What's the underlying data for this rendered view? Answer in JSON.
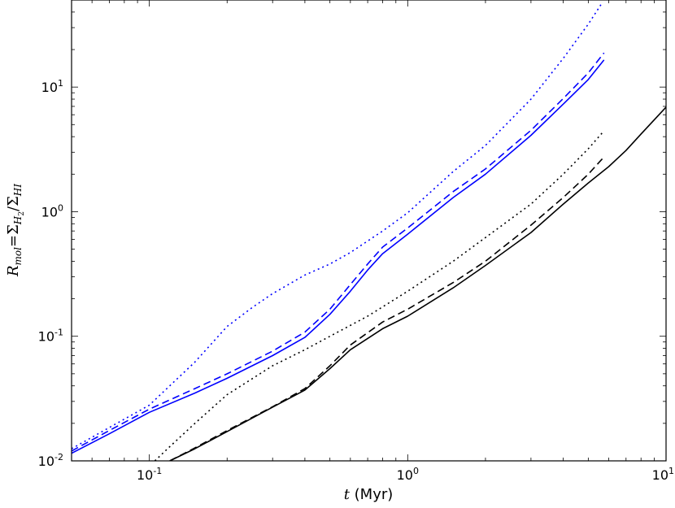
{
  "chart_data": {
    "type": "line",
    "xlabel_var": "t",
    "xlabel_unit": " (Myr)",
    "ylabel": "R_mol = Σ_H2 / Σ_HI",
    "xscale": "log",
    "yscale": "log",
    "xlim": [
      0.05,
      10
    ],
    "ylim": [
      0.01,
      50
    ],
    "grid": false,
    "x_tick_labels": [
      {
        "base": "10",
        "exp": "-1",
        "value": 0.1
      },
      {
        "base": "10",
        "exp": "0",
        "value": 1
      },
      {
        "base": "10",
        "exp": "1",
        "value": 10
      }
    ],
    "y_tick_labels": [
      {
        "base": "10",
        "exp": "-2",
        "value": 0.01
      },
      {
        "base": "10",
        "exp": "-1",
        "value": 0.1
      },
      {
        "base": "10",
        "exp": "0",
        "value": 1
      },
      {
        "base": "10",
        "exp": "1",
        "value": 10
      }
    ],
    "series": [
      {
        "color": "#0000ff",
        "dash": "solid",
        "x": [
          0.05,
          0.07,
          0.1,
          0.15,
          0.2,
          0.3,
          0.4,
          0.5,
          0.6,
          0.7,
          0.8,
          1.0,
          1.5,
          2.0,
          3.0,
          4.0,
          5.0,
          5.75
        ],
        "y": [
          0.0115,
          0.0165,
          0.0245,
          0.035,
          0.046,
          0.07,
          0.098,
          0.15,
          0.23,
          0.34,
          0.46,
          0.66,
          1.3,
          2.0,
          4.1,
          7.3,
          11.5,
          16.5
        ]
      },
      {
        "color": "#0000ff",
        "dash": "dashed",
        "x": [
          0.05,
          0.07,
          0.1,
          0.15,
          0.2,
          0.3,
          0.4,
          0.5,
          0.6,
          0.7,
          0.8,
          1.0,
          1.5,
          2.0,
          3.0,
          4.0,
          5.0,
          5.75
        ],
        "y": [
          0.012,
          0.0175,
          0.026,
          0.038,
          0.05,
          0.076,
          0.108,
          0.165,
          0.26,
          0.38,
          0.52,
          0.74,
          1.45,
          2.2,
          4.5,
          8.1,
          13.0,
          18.8
        ]
      },
      {
        "color": "#0000ff",
        "dash": "dotted",
        "x": [
          0.05,
          0.07,
          0.1,
          0.15,
          0.2,
          0.25,
          0.3,
          0.4,
          0.5,
          0.6,
          0.8,
          1.0,
          1.5,
          2.0,
          3.0,
          4.0,
          5.0,
          5.6
        ],
        "y": [
          0.0125,
          0.0185,
          0.028,
          0.062,
          0.12,
          0.17,
          0.22,
          0.31,
          0.38,
          0.47,
          0.7,
          0.98,
          2.1,
          3.4,
          8.0,
          17.0,
          32.0,
          46.0
        ]
      },
      {
        "color": "#000000",
        "dash": "solid",
        "x": [
          0.12,
          0.15,
          0.2,
          0.3,
          0.4,
          0.5,
          0.6,
          0.8,
          1.0,
          1.5,
          2.0,
          3.0,
          4.0,
          5.0,
          6.0,
          7.0,
          8.0,
          10.0
        ],
        "y": [
          0.01,
          0.0125,
          0.0172,
          0.027,
          0.037,
          0.055,
          0.078,
          0.115,
          0.145,
          0.245,
          0.37,
          0.68,
          1.15,
          1.7,
          2.3,
          3.1,
          4.2,
          6.9
        ]
      },
      {
        "color": "#000000",
        "dash": "dashed",
        "x": [
          0.12,
          0.15,
          0.2,
          0.3,
          0.4,
          0.5,
          0.6,
          0.8,
          1.0,
          1.5,
          2.0,
          3.0,
          4.0,
          5.0,
          5.75
        ],
        "y": [
          0.01,
          0.0127,
          0.0175,
          0.0272,
          0.038,
          0.058,
          0.085,
          0.13,
          0.165,
          0.27,
          0.4,
          0.78,
          1.3,
          2.0,
          2.75
        ]
      },
      {
        "color": "#000000",
        "dash": "dotted",
        "x": [
          0.105,
          0.12,
          0.15,
          0.2,
          0.3,
          0.4,
          0.5,
          0.7,
          1.0,
          1.5,
          2.0,
          3.0,
          4.0,
          5.0,
          5.75
        ],
        "y": [
          0.01,
          0.013,
          0.02,
          0.034,
          0.058,
          0.078,
          0.1,
          0.145,
          0.23,
          0.4,
          0.62,
          1.15,
          2.0,
          3.2,
          4.45
        ]
      }
    ]
  }
}
